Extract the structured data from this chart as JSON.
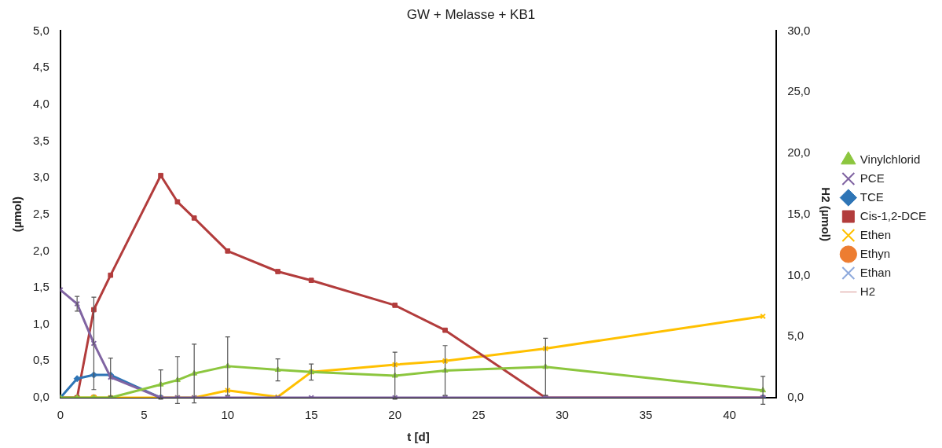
{
  "chart_data": {
    "type": "line",
    "title": "GW + Melasse + KB1",
    "xlabel": "t [d]",
    "ylabel": "(µmol)",
    "y2label": "H2 (µmol)",
    "x": [
      0,
      1,
      2,
      3,
      6,
      7,
      8,
      10,
      13,
      15,
      20,
      23,
      29,
      42
    ],
    "xlim": [
      0,
      42.8
    ],
    "xticks": [
      0,
      5,
      10,
      15,
      20,
      25,
      30,
      35,
      40
    ],
    "ylim": [
      0,
      5
    ],
    "yticks": [
      {
        "value": 0,
        "label": "0,0"
      },
      {
        "value": 0.5,
        "label": "0,5"
      },
      {
        "value": 1,
        "label": "1,0"
      },
      {
        "value": 1.5,
        "label": "1,5"
      },
      {
        "value": 2,
        "label": "2,0"
      },
      {
        "value": 2.5,
        "label": "2,5"
      },
      {
        "value": 3,
        "label": "3,0"
      },
      {
        "value": 3.5,
        "label": "3,5"
      },
      {
        "value": 4,
        "label": "4,0"
      },
      {
        "value": 4.5,
        "label": "4,5"
      },
      {
        "value": 5,
        "label": "5,0"
      }
    ],
    "y2lim": [
      0,
      30
    ],
    "y2ticks": [
      {
        "value": 0,
        "label": "0,0"
      },
      {
        "value": 5,
        "label": "5,0"
      },
      {
        "value": 10,
        "label": "10,0"
      },
      {
        "value": 15,
        "label": "15,0"
      },
      {
        "value": 20,
        "label": "20,0"
      },
      {
        "value": 25,
        "label": "25,0"
      },
      {
        "value": 30,
        "label": "30,0"
      }
    ],
    "grid": false,
    "legend": "right",
    "series": [
      {
        "name": "Vinylchlorid",
        "color": "#8cc63e",
        "marker": "triangle",
        "values": [
          0,
          0,
          0,
          0,
          0.18,
          0.24,
          0.33,
          0.43,
          0.38,
          0.35,
          0.3,
          0.37,
          0.42,
          0.1
        ],
        "errors": [
          null,
          null,
          null,
          null,
          0.2,
          0.32,
          0.4,
          0.4,
          0.15,
          0.11,
          0.32,
          0.34,
          0.39,
          0.19
        ]
      },
      {
        "name": "PCE",
        "color": "#8064a2",
        "marker": "cross",
        "values": [
          1.47,
          1.28,
          0.74,
          0.28,
          0,
          0,
          0,
          0,
          0,
          0,
          0,
          0,
          0,
          0
        ],
        "errors": [
          null,
          0.1,
          0.63,
          0.26,
          null,
          null,
          null,
          null,
          null,
          null,
          null,
          null,
          null,
          null
        ]
      },
      {
        "name": "TCE",
        "color": "#2e75b6",
        "marker": "diamond",
        "values": [
          0,
          0.26,
          0.31,
          0.31,
          0,
          null,
          null,
          null,
          null,
          null,
          null,
          null,
          null,
          0
        ]
      },
      {
        "name": "Cis-1,2-DCE",
        "color": "#b23c3c",
        "marker": "square",
        "values": [
          0,
          0,
          1.2,
          1.67,
          3.03,
          2.67,
          2.45,
          2.0,
          1.72,
          1.6,
          1.26,
          0.92,
          0,
          0
        ]
      },
      {
        "name": "Ethen",
        "color": "#ffc000",
        "marker": "cross",
        "values": [
          0,
          0,
          0,
          0,
          0,
          0,
          0,
          0.1,
          0.01,
          0.35,
          0.45,
          0.5,
          0.67,
          1.11
        ]
      },
      {
        "name": "Ethyn",
        "color": "#ed7d31",
        "marker": "circle",
        "values": [
          null,
          null,
          0,
          null,
          null,
          null,
          null,
          null,
          null,
          null,
          null,
          null,
          null,
          null
        ]
      },
      {
        "name": "Ethan",
        "color": "#8faadc",
        "marker": "cross",
        "values": [
          null,
          null,
          null,
          null,
          null,
          null,
          null,
          null,
          null,
          null,
          null,
          null,
          null,
          null
        ]
      },
      {
        "name": "H2",
        "color": "#d99694",
        "marker": "none",
        "values": [
          null,
          null,
          null,
          null,
          null,
          null,
          null,
          null,
          null,
          null,
          null,
          null,
          null,
          null
        ]
      }
    ]
  }
}
